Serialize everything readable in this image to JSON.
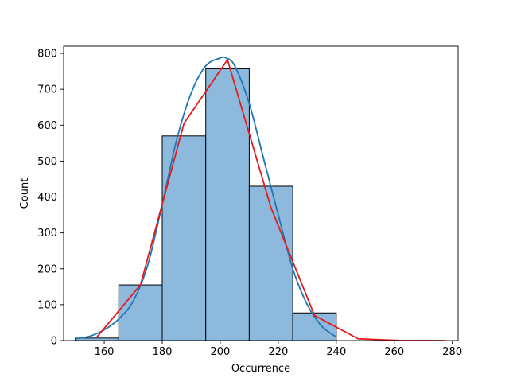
{
  "chart_data": {
    "type": "bar",
    "title": "",
    "xlabel": "Occurrence",
    "ylabel": "Count",
    "xlim": [
      146,
      282
    ],
    "ylim": [
      0,
      820
    ],
    "xticks": [
      160,
      180,
      200,
      220,
      240,
      260,
      280
    ],
    "yticks": [
      0,
      100,
      200,
      300,
      400,
      500,
      600,
      700,
      800
    ],
    "grid": false,
    "legend": "none",
    "histogram": {
      "bin_edges": [
        150,
        165,
        180,
        195,
        210,
        225,
        240
      ],
      "counts": [
        7,
        155,
        570,
        757,
        430,
        77
      ],
      "fill_color": "#8db9dd",
      "edge_color": "#000000"
    },
    "series": [
      {
        "kind": "kde",
        "color": "#1f77b4",
        "x": [
          150,
          155,
          160,
          165,
          170,
          175,
          180,
          185,
          190,
          195,
          200,
          202,
          205,
          210,
          215,
          220,
          225,
          230,
          235,
          240
        ],
        "y": [
          5,
          12,
          30,
          60,
          110,
          210,
          380,
          560,
          690,
          765,
          787,
          787,
          765,
          660,
          505,
          350,
          200,
          100,
          40,
          10
        ]
      },
      {
        "kind": "polygon",
        "color": "#e31a1c",
        "x": [
          157.5,
          172.5,
          187.5,
          202.5,
          217.5,
          232.5,
          247.5,
          262.5,
          277.5
        ],
        "y": [
          10,
          155,
          605,
          782,
          370,
          70,
          5,
          0,
          0
        ]
      }
    ]
  }
}
